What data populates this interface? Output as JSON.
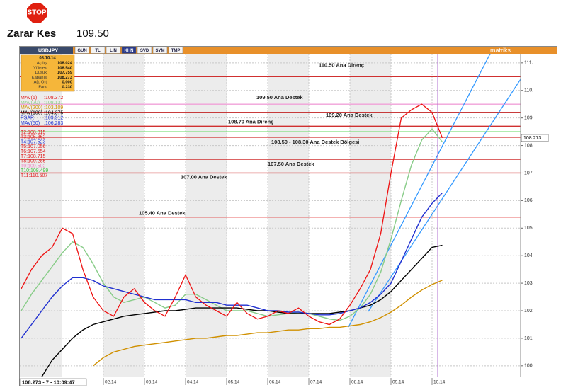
{
  "header": {
    "stop": "STOP",
    "stop_loss_label": "Zarar Kes",
    "stop_loss_value": "109.50"
  },
  "toolbar": {
    "symbol": "USDJPY",
    "buttons": [
      "GUN",
      "TL",
      "LIN",
      "KHN",
      "SVD",
      "SYM",
      "TMP"
    ],
    "brand": "matriks"
  },
  "info": {
    "date": "08.10.14",
    "rows": [
      [
        "Açılış",
        "108.024"
      ],
      [
        "Yüksek",
        "108.540"
      ],
      [
        "Düşük",
        "107.759"
      ],
      [
        "Kapanış",
        "108.273"
      ],
      [
        "Ağ. Ort",
        "0.000"
      ],
      [
        "Fark",
        "0.230"
      ]
    ]
  },
  "indicators": [
    {
      "label": "MAV(5)",
      "value": ":108.372",
      "color": "#e02020"
    },
    {
      "label": "MAV(20)",
      "value": ":108.131",
      "color": "#88cc88"
    },
    {
      "label": "MAV(200)",
      "value": ":103.109",
      "color": "#d09000"
    },
    {
      "label": "MAV(100)",
      "value": ":104.375",
      "color": "#000000"
    },
    {
      "label": "PSAR",
      "value": ":109.912",
      "color": "#2030d0"
    },
    {
      "label": "MAV(50)",
      "value": ":106.283",
      "color": "#2030d0"
    }
  ],
  "targets": [
    {
      "text": "T2:108.315",
      "color": "#e02020"
    },
    {
      "text": "T3:105.362",
      "color": "#e02020"
    },
    {
      "text": "T4:107.523",
      "color": "#2030d0"
    },
    {
      "text": "T5:107.056",
      "color": "#e02020"
    },
    {
      "text": "T6:107.554",
      "color": "#e02020"
    },
    {
      "text": "T7:108.715",
      "color": "#e02020"
    },
    {
      "text": "T8:109.285",
      "color": "#e02020"
    },
    {
      "text": "T9:109.502",
      "color": "#f080c0"
    },
    {
      "text": "T10:108.499",
      "color": "#40c040"
    },
    {
      "text": "T11:110.507",
      "color": "#e02020"
    }
  ],
  "status": "108.273 - 7 - 10:09:47",
  "chart_data": {
    "type": "line",
    "categories": [
      null,
      null,
      null,
      null,
      null,
      null,
      null,
      null,
      "02.14",
      null,
      null,
      null,
      "03.14",
      null,
      null,
      null,
      "04.14",
      null,
      null,
      null,
      "05.14",
      null,
      null,
      null,
      "06.14",
      null,
      null,
      null,
      "07.14",
      null,
      null,
      null,
      "08.14",
      null,
      null,
      null,
      "09.14",
      null,
      null,
      null,
      "10.14",
      null
    ],
    "series": [
      {
        "color": "#88cc88",
        "values": [
          102.0,
          102.6,
          103.1,
          103.6,
          104.1,
          104.5,
          104.3,
          103.7,
          103.0,
          102.5,
          102.3,
          102.4,
          102.5,
          102.3,
          102.1,
          102.2,
          102.6,
          102.6,
          102.4,
          102.2,
          102.0,
          102.0,
          102.0,
          101.9,
          101.8,
          101.85,
          101.9,
          101.95,
          101.9,
          101.8,
          101.7,
          101.65,
          101.8,
          102.1,
          102.6,
          103.4,
          104.6,
          106.0,
          107.3,
          108.2,
          108.6,
          108.131
        ]
      },
      {
        "color": "#d09000",
        "values": [
          null,
          null,
          null,
          null,
          null,
          null,
          null,
          100.0,
          100.3,
          100.5,
          100.6,
          100.7,
          100.75,
          100.8,
          100.85,
          100.9,
          100.95,
          101.0,
          101.0,
          101.05,
          101.1,
          101.1,
          101.15,
          101.2,
          101.2,
          101.25,
          101.3,
          101.3,
          101.35,
          101.35,
          101.4,
          101.4,
          101.45,
          101.5,
          101.6,
          101.75,
          101.95,
          102.2,
          102.5,
          102.75,
          102.95,
          103.109
        ]
      },
      {
        "color": "#000000",
        "values": [
          null,
          null,
          99.6,
          100.2,
          100.6,
          101.0,
          101.3,
          101.5,
          101.6,
          101.7,
          101.8,
          101.85,
          101.9,
          101.95,
          102.0,
          102.0,
          102.05,
          102.1,
          102.1,
          102.1,
          102.1,
          102.1,
          102.05,
          102.0,
          102.0,
          101.95,
          101.9,
          101.9,
          101.9,
          101.9,
          101.9,
          101.95,
          102.0,
          102.1,
          102.2,
          102.4,
          102.7,
          103.1,
          103.5,
          103.9,
          104.3,
          104.375
        ]
      },
      {
        "color": "#2030d0",
        "values": [
          101.0,
          101.5,
          102.0,
          102.5,
          102.9,
          103.2,
          103.2,
          103.1,
          102.9,
          102.8,
          102.7,
          102.6,
          102.5,
          102.4,
          102.4,
          102.4,
          102.4,
          102.3,
          102.3,
          102.3,
          102.2,
          102.2,
          102.2,
          102.1,
          102.0,
          102.0,
          101.95,
          101.95,
          101.9,
          101.85,
          101.85,
          101.9,
          102.0,
          102.1,
          102.3,
          102.6,
          103.0,
          103.8,
          104.6,
          105.4,
          105.9,
          106.283
        ]
      },
      {
        "color": "#ee1010",
        "values": [
          102.8,
          103.5,
          104.0,
          104.3,
          105.0,
          104.8,
          103.5,
          102.5,
          102.0,
          101.8,
          102.5,
          102.8,
          102.3,
          102.0,
          101.8,
          102.5,
          103.3,
          102.5,
          102.2,
          102.0,
          101.8,
          102.3,
          101.9,
          101.7,
          101.8,
          102.0,
          101.9,
          102.1,
          101.8,
          101.6,
          101.5,
          101.7,
          102.2,
          102.8,
          103.5,
          104.8,
          107.0,
          109.0,
          109.3,
          109.5,
          109.2,
          108.273
        ]
      }
    ],
    "ylim": [
      99.61,
      111.33
    ],
    "yticks": [
      {
        "value": 100,
        "label": "100."
      },
      {
        "value": 101,
        "label": "101."
      },
      {
        "value": 102,
        "label": "102."
      },
      {
        "value": 103,
        "label": "103."
      },
      {
        "value": 104,
        "label": "104."
      },
      {
        "value": 105,
        "label": "105."
      },
      {
        "value": 106,
        "label": "106."
      },
      {
        "value": 107,
        "label": "107."
      },
      {
        "value": 108,
        "label": "108."
      },
      {
        "value": 109,
        "label": "109."
      },
      {
        "value": 110,
        "label": "110."
      },
      {
        "value": 111,
        "label": "111."
      }
    ],
    "grid": true,
    "levels": [
      {
        "value": 110.5,
        "label": "110.50 Ana Direnç",
        "color": "#d03030"
      },
      {
        "value": 109.5,
        "label": "109.50 Ana Destek",
        "color": "#f0a0d8"
      },
      {
        "value": 109.2,
        "label": "109.20 Ana Destek",
        "color": "#c02020"
      },
      {
        "value": 108.7,
        "label": "108.70  Ana Direnç",
        "color": "#d03030"
      },
      {
        "value": 108.5,
        "color": "#80e080"
      },
      {
        "value": 108.3,
        "label": "108.50 - 108.30 Ana Destek Bölgesi",
        "color": "#d03030"
      },
      {
        "value": 107.5,
        "label": "107.50 Ana Destek",
        "color": "#d03030"
      },
      {
        "value": 107.0,
        "label": "107.00 Ana Destek",
        "color": "#d03030"
      },
      {
        "value": 105.4,
        "label": "105.40 Ana Destek",
        "color": "#e03030"
      }
    ],
    "last_price": {
      "value": 108.273,
      "label": "108.273"
    }
  }
}
